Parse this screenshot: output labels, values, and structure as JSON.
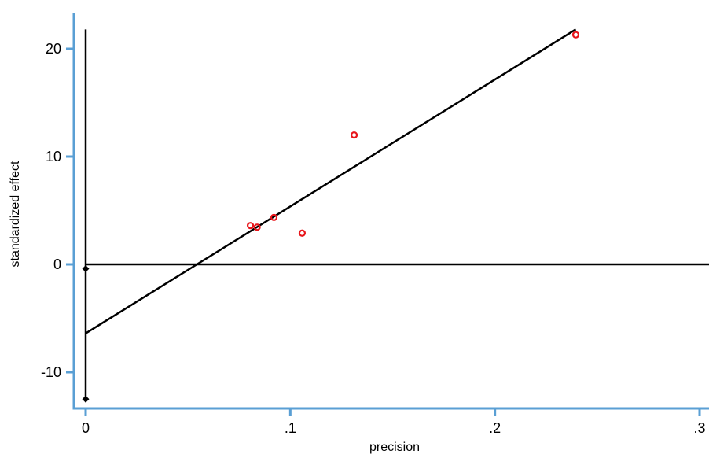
{
  "chart_data": {
    "type": "scatter",
    "title": "",
    "xlabel": "precision",
    "ylabel": "standardized effect",
    "xlim": [
      0,
      0.3
    ],
    "ylim": [
      -13.5,
      22
    ],
    "x_ticks": [
      {
        "value": 0,
        "label": "0"
      },
      {
        "value": 0.1,
        "label": ".1"
      },
      {
        "value": 0.2,
        "label": ".2"
      },
      {
        "value": 0.3,
        "label": ".3"
      }
    ],
    "y_ticks": [
      {
        "value": -10,
        "label": "-10"
      },
      {
        "value": 0,
        "label": "0"
      },
      {
        "value": 10,
        "label": "10"
      },
      {
        "value": 20,
        "label": "20"
      }
    ],
    "points": [
      {
        "x": 0.0805,
        "y": 3.6
      },
      {
        "x": 0.0838,
        "y": 3.45
      },
      {
        "x": 0.092,
        "y": 4.35
      },
      {
        "x": 0.1058,
        "y": 2.9
      },
      {
        "x": 0.1312,
        "y": 12.0
      },
      {
        "x": 0.2395,
        "y": 21.3
      }
    ],
    "regression_line": {
      "x": [
        0,
        0.2395
      ],
      "y": [
        -6.4,
        21.8
      ]
    },
    "reference_line": {
      "y": 0
    },
    "ci_line": {
      "x": 0,
      "y": [
        -12.5,
        21.8
      ]
    },
    "ci_markers": [
      {
        "x": 0,
        "y": -0.4
      },
      {
        "x": 0,
        "y": -12.5
      }
    ],
    "grid": false,
    "legend": "none",
    "colors": {
      "axis": "#5a9fd4",
      "points": "#e8161b",
      "lines": "#000000",
      "markers": "#000000"
    }
  }
}
